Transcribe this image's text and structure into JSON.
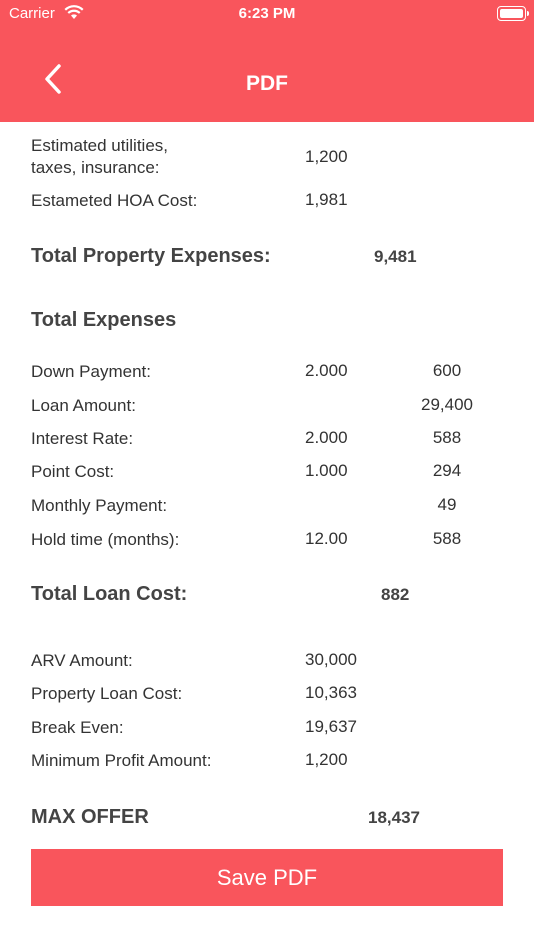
{
  "colors": {
    "accent": "#F9555C"
  },
  "status": {
    "carrier": "Carrier",
    "time": "6:23 PM"
  },
  "nav": {
    "title": "PDF",
    "back_icon": "chevron-left-icon"
  },
  "property_rows": [
    {
      "label": "Estimated utilities,\ntaxes, insurance:",
      "value": "1,200"
    },
    {
      "label": "Estameted HOA Cost:",
      "value": "1,981"
    }
  ],
  "total_property_expenses": {
    "label": "Total Property Expenses:",
    "value": "9,481"
  },
  "total_expenses_heading": "Total Expenses",
  "loan_rows": [
    {
      "label": "Down Payment:",
      "v1": "2.000",
      "v2": "600"
    },
    {
      "label": "Loan Amount:",
      "v1": "",
      "v2": "29,400"
    },
    {
      "label": "Interest Rate:",
      "v1": "2.000",
      "v2": "588"
    },
    {
      "label": "Point Cost:",
      "v1": "1.000",
      "v2": "294"
    },
    {
      "label": "Monthly Payment:",
      "v1": "",
      "v2": "49"
    },
    {
      "label": "Hold time (months):",
      "v1": "12.00",
      "v2": "588"
    }
  ],
  "total_loan_cost": {
    "label": "Total Loan Cost:",
    "value": "882"
  },
  "summary_rows": [
    {
      "label": "ARV Amount:",
      "value": "30,000"
    },
    {
      "label": "Property Loan Cost:",
      "value": "10,363"
    },
    {
      "label": "Break Even:",
      "value": "19,637"
    },
    {
      "label": "Minimum Profit Amount:",
      "value": "1,200"
    }
  ],
  "max_offer": {
    "label": "MAX OFFER",
    "value": "18,437"
  },
  "save_button": "Save PDF"
}
